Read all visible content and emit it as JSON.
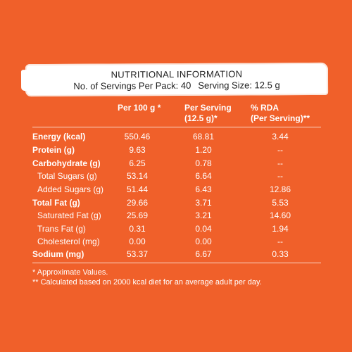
{
  "header": {
    "title": "NUTRITIONAL INFORMATION",
    "servings_label": "No. of Servings Per Pack: 40",
    "serving_size_label": "Serving Size: 12.5 g"
  },
  "columns": {
    "per100": "Per 100 g *",
    "perServing_line1": "Per Serving",
    "perServing_line2": "(12.5 g)*",
    "rda_line1": "% RDA",
    "rda_line2": "(Per Serving)**"
  },
  "rows": [
    {
      "label": "Energy (kcal)",
      "per100": "550.46",
      "perServing": "68.81",
      "rda": "3.44"
    },
    {
      "label": "Protein (g)",
      "per100": "9.63",
      "perServing": "1.20",
      "rda": "--"
    },
    {
      "label": "Carbohydrate (g)",
      "per100": "6.25",
      "perServing": "0.78",
      "rda": "--"
    },
    {
      "label": "Total Sugars (g)",
      "per100": "53.14",
      "perServing": "6.64",
      "rda": "--"
    },
    {
      "label": "Added Sugars (g)",
      "per100": "51.44",
      "perServing": "6.43",
      "rda": "12.86"
    },
    {
      "label": "Total Fat (g)",
      "per100": "29.66",
      "perServing": "3.71",
      "rda": "5.53"
    },
    {
      "label": "Saturated Fat (g)",
      "per100": "25.69",
      "perServing": "3.21",
      "rda": "14.60"
    },
    {
      "label": "Trans Fat (g)",
      "per100": "0.31",
      "perServing": "0.04",
      "rda": "1.94"
    },
    {
      "label": "Cholesterol (mg)",
      "per100": "0.00",
      "perServing": "0.00",
      "rda": "--"
    },
    {
      "label": "Sodium (mg)",
      "per100": "53.37",
      "perServing": "6.67",
      "rda": "0.33"
    }
  ],
  "footnotes": {
    "approx": "* Approximate Values.",
    "rda_note": "** Calculated based on 2000 kcal diet for an average adult per day."
  },
  "colors": {
    "background": "#f0602a",
    "banner": "#ffffff",
    "text": "#ffffff"
  }
}
